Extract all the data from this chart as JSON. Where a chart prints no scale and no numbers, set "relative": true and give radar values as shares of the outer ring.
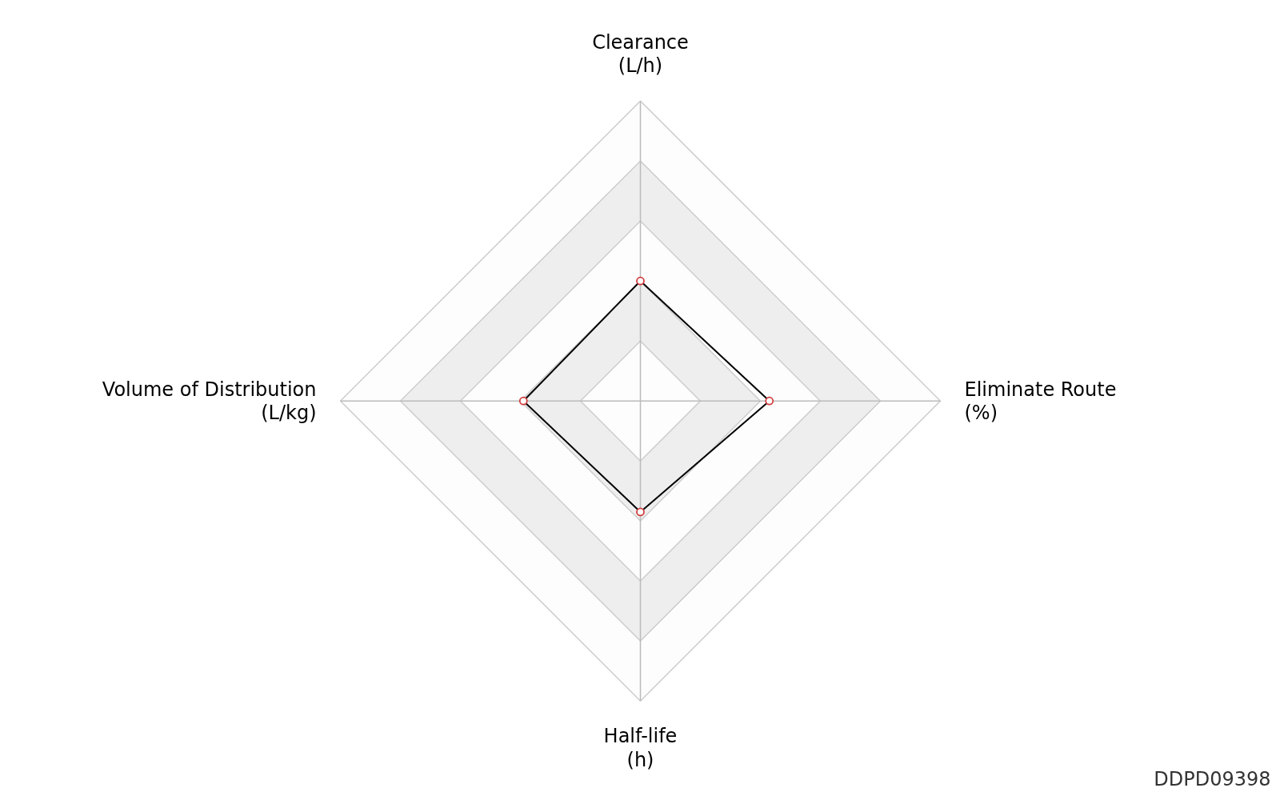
{
  "chart_data": {
    "type": "radar",
    "relative": true,
    "categories": [
      "Clearance\n(L/h)",
      "Eliminate Route\n(%)",
      "Half-life\n(h)",
      "Volume of Distribution\n(L/kg)"
    ],
    "series": [
      {
        "color": "#000000",
        "values": [
          0.4,
          0.43,
          0.37,
          0.39
        ]
      }
    ],
    "marker": "circle",
    "grid": true,
    "annotations": [
      "DDPD09398"
    ]
  }
}
